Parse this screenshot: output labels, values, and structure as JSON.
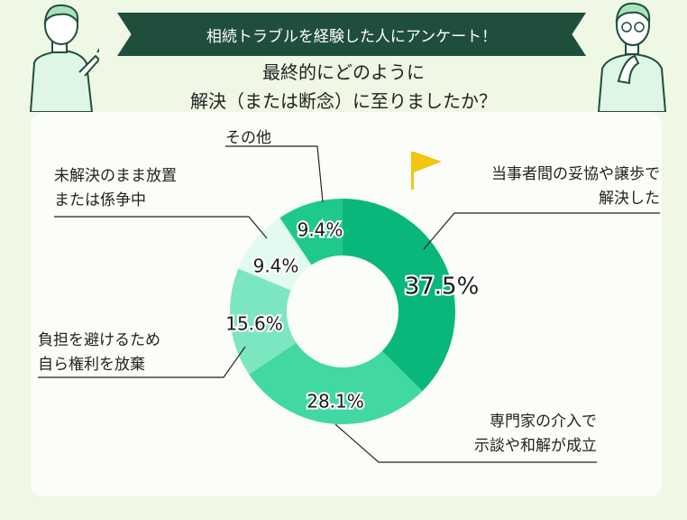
{
  "banner": {
    "text": "相続トラブルを経験した人にアンケート！"
  },
  "question": {
    "line1": "最終的にどのように",
    "line2": "解決（または断念）に至りましたか？"
  },
  "colors": {
    "banner": "#1f4e3c",
    "background": "#eef8e4",
    "flag": "#f2c611"
  },
  "chart_data": {
    "type": "pie",
    "title": "",
    "categories": [
      "当事者間の妥協や譲歩で解決した",
      "専門家の介入で示談や和解が成立",
      "負担を避けるため自ら権利を放棄",
      "未解決のまま放置または係争中",
      "その他"
    ],
    "values": [
      37.5,
      28.1,
      15.6,
      9.4,
      9.4
    ],
    "labels": [
      "37.5%",
      "28.1%",
      "15.6%",
      "9.4%",
      "9.4%"
    ],
    "colors": [
      "#0ab77a",
      "#42d8a2",
      "#7ce6c0",
      "#e2faf0",
      "#1fc98a"
    ],
    "legend_lines": [
      [
        "当事者間の妥協や譲歩で",
        "解決した"
      ],
      [
        "専門家の介入で",
        "示談や和解が成立"
      ],
      [
        "負担を避けるため",
        "自ら権利を放棄"
      ],
      [
        "未解決のまま放置",
        "または係争中"
      ],
      [
        "その他"
      ]
    ]
  }
}
